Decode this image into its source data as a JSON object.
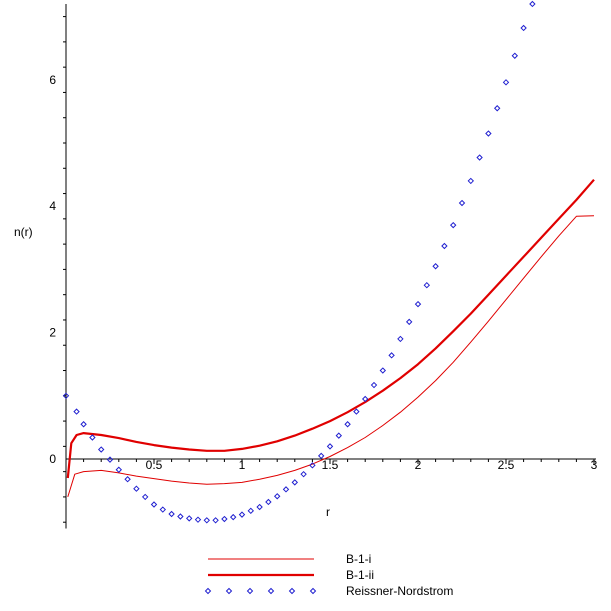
{
  "chart_data": {
    "type": "line",
    "title": "",
    "xlabel": "r",
    "ylabel": "n(r)",
    "xlim": [
      0,
      3
    ],
    "ylim": [
      -1.1,
      7.2
    ],
    "grid": false,
    "legend_placement": "bottom",
    "x_ticks": [
      {
        "value": 0.5,
        "label": "0.5"
      },
      {
        "value": 1,
        "label": "1"
      },
      {
        "value": 1.5,
        "label": "1.5"
      },
      {
        "value": 2,
        "label": "2"
      },
      {
        "value": 2.5,
        "label": "2.5"
      },
      {
        "value": 3,
        "label": "3"
      }
    ],
    "y_ticks": [
      {
        "value": 0,
        "label": "0"
      },
      {
        "value": 2,
        "label": "2"
      },
      {
        "value": 4,
        "label": "4"
      },
      {
        "value": 6,
        "label": "6"
      }
    ],
    "series": [
      {
        "name": "B-1-i",
        "style": "thin-line",
        "color": "#e00000",
        "points": [
          [
            0.01,
            -0.6
          ],
          [
            0.05,
            -0.24
          ],
          [
            0.1,
            -0.2
          ],
          [
            0.2,
            -0.18
          ],
          [
            0.3,
            -0.22
          ],
          [
            0.4,
            -0.27
          ],
          [
            0.5,
            -0.31
          ],
          [
            0.6,
            -0.35
          ],
          [
            0.7,
            -0.38
          ],
          [
            0.8,
            -0.4
          ],
          [
            0.9,
            -0.39
          ],
          [
            1.0,
            -0.37
          ],
          [
            1.1,
            -0.32
          ],
          [
            1.2,
            -0.26
          ],
          [
            1.3,
            -0.18
          ],
          [
            1.4,
            -0.08
          ],
          [
            1.5,
            0.04
          ],
          [
            1.6,
            0.18
          ],
          [
            1.7,
            0.34
          ],
          [
            1.8,
            0.53
          ],
          [
            1.9,
            0.74
          ],
          [
            2.0,
            0.98
          ],
          [
            2.1,
            1.24
          ],
          [
            2.2,
            1.53
          ],
          [
            2.3,
            1.85
          ],
          [
            2.4,
            2.18
          ],
          [
            2.5,
            2.52
          ],
          [
            2.6,
            2.86
          ],
          [
            2.7,
            3.2
          ],
          [
            2.8,
            3.53
          ],
          [
            2.9,
            3.84
          ],
          [
            3.0,
            3.85
          ]
        ]
      },
      {
        "name": "B-1-ii",
        "style": "thick-line",
        "color": "#e00000",
        "points": [
          [
            0.01,
            -0.3
          ],
          [
            0.03,
            0.25
          ],
          [
            0.06,
            0.38
          ],
          [
            0.1,
            0.41
          ],
          [
            0.2,
            0.38
          ],
          [
            0.3,
            0.33
          ],
          [
            0.4,
            0.27
          ],
          [
            0.5,
            0.22
          ],
          [
            0.6,
            0.18
          ],
          [
            0.7,
            0.15
          ],
          [
            0.8,
            0.13
          ],
          [
            0.9,
            0.13
          ],
          [
            1.0,
            0.16
          ],
          [
            1.1,
            0.21
          ],
          [
            1.2,
            0.28
          ],
          [
            1.3,
            0.37
          ],
          [
            1.4,
            0.48
          ],
          [
            1.5,
            0.6
          ],
          [
            1.6,
            0.74
          ],
          [
            1.7,
            0.9
          ],
          [
            1.8,
            1.08
          ],
          [
            1.9,
            1.28
          ],
          [
            2.0,
            1.5
          ],
          [
            2.1,
            1.75
          ],
          [
            2.2,
            2.02
          ],
          [
            2.3,
            2.3
          ],
          [
            2.4,
            2.6
          ],
          [
            2.5,
            2.9
          ],
          [
            2.6,
            3.2
          ],
          [
            2.7,
            3.5
          ],
          [
            2.8,
            3.8
          ],
          [
            2.9,
            4.1
          ],
          [
            3.0,
            4.42
          ]
        ]
      },
      {
        "name": "Reissner-Nordstrom",
        "style": "diamond-markers",
        "color": "#2020d0",
        "points": [
          [
            0,
            1.0
          ],
          [
            0.06,
            0.75
          ],
          [
            0.1,
            0.55
          ],
          [
            0.15,
            0.34
          ],
          [
            0.2,
            0.15
          ],
          [
            0.25,
            -0.01
          ],
          [
            0.3,
            -0.17
          ],
          [
            0.35,
            -0.32
          ],
          [
            0.4,
            -0.47
          ],
          [
            0.45,
            -0.6
          ],
          [
            0.5,
            -0.72
          ],
          [
            0.55,
            -0.8
          ],
          [
            0.6,
            -0.87
          ],
          [
            0.65,
            -0.91
          ],
          [
            0.7,
            -0.94
          ],
          [
            0.75,
            -0.96
          ],
          [
            0.8,
            -0.97
          ],
          [
            0.85,
            -0.97
          ],
          [
            0.9,
            -0.95
          ],
          [
            0.95,
            -0.92
          ],
          [
            1.0,
            -0.88
          ],
          [
            1.05,
            -0.82
          ],
          [
            1.1,
            -0.76
          ],
          [
            1.15,
            -0.68
          ],
          [
            1.2,
            -0.59
          ],
          [
            1.25,
            -0.48
          ],
          [
            1.3,
            -0.37
          ],
          [
            1.35,
            -0.24
          ],
          [
            1.4,
            -0.1
          ],
          [
            1.45,
            0.05
          ],
          [
            1.5,
            0.2
          ],
          [
            1.55,
            0.37
          ],
          [
            1.6,
            0.55
          ],
          [
            1.65,
            0.75
          ],
          [
            1.7,
            0.95
          ],
          [
            1.75,
            1.17
          ],
          [
            1.8,
            1.4
          ],
          [
            1.85,
            1.64
          ],
          [
            1.9,
            1.9
          ],
          [
            1.95,
            2.17
          ],
          [
            2.0,
            2.45
          ],
          [
            2.05,
            2.75
          ],
          [
            2.1,
            3.05
          ],
          [
            2.15,
            3.37
          ],
          [
            2.2,
            3.7
          ],
          [
            2.25,
            4.05
          ],
          [
            2.3,
            4.4
          ],
          [
            2.35,
            4.77
          ],
          [
            2.4,
            5.15
          ],
          [
            2.45,
            5.55
          ],
          [
            2.5,
            5.96
          ],
          [
            2.55,
            6.38
          ],
          [
            2.6,
            6.82
          ],
          [
            2.65,
            7.2
          ]
        ]
      }
    ]
  }
}
